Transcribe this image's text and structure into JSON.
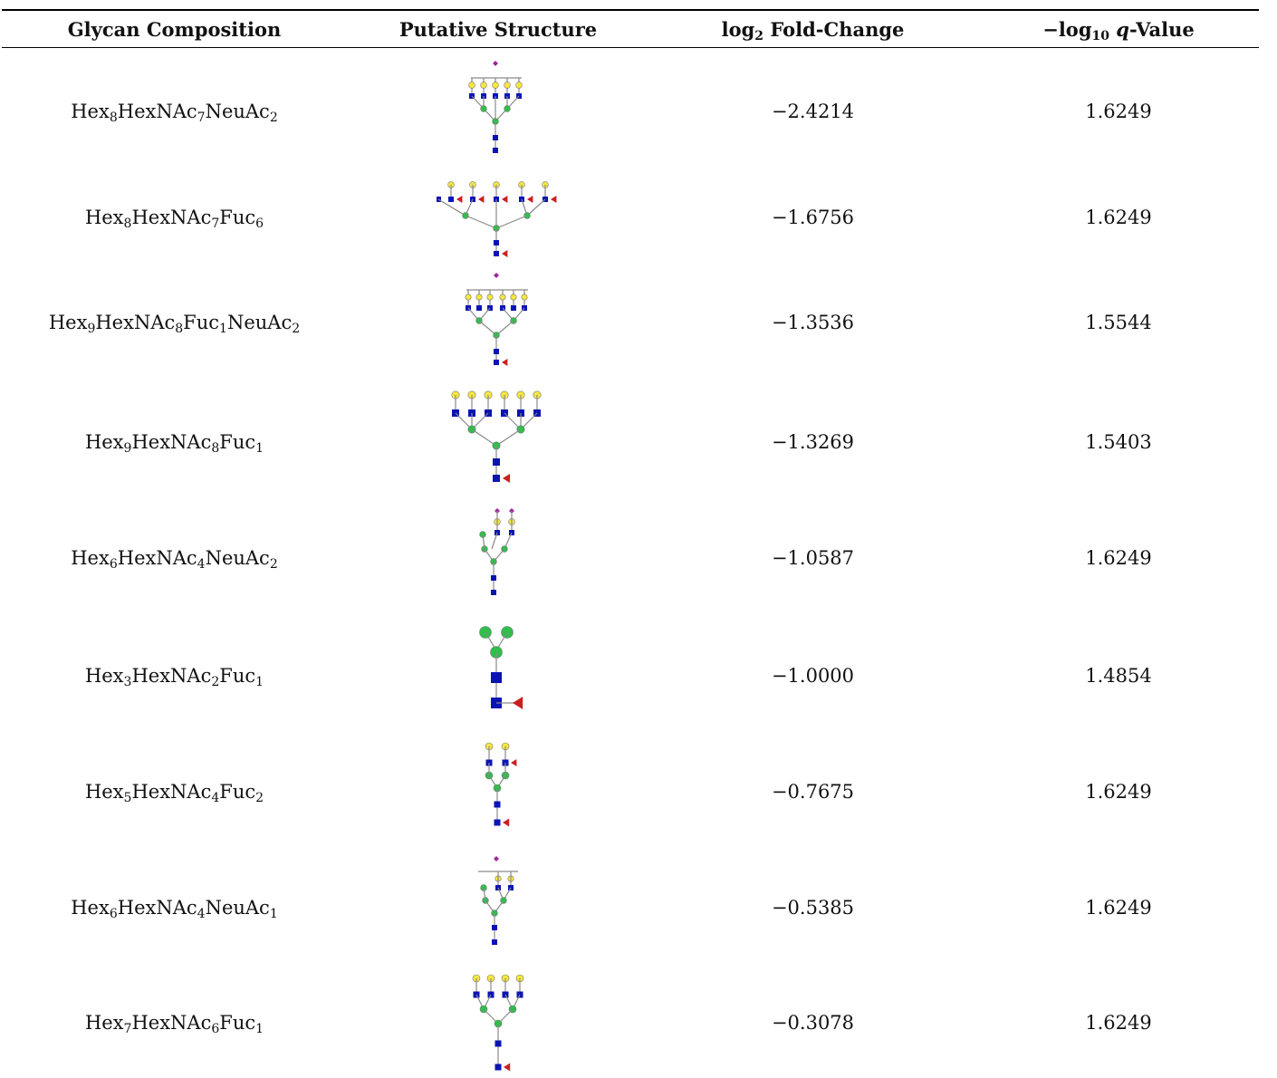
{
  "table": {
    "headers": {
      "composition": "Glycan Composition",
      "structure": "Putative Structure",
      "fold_change": {
        "pre": "log",
        "sub": "2",
        "post": " Fold-Change"
      },
      "q_value": {
        "pre": "−log",
        "sub": "10",
        "ital": "q",
        "post": "-Value"
      }
    },
    "rows": [
      {
        "composition": [
          [
            "Hex",
            "8"
          ],
          [
            "HexNAc",
            "7"
          ],
          [
            "NeuAc",
            "2"
          ]
        ],
        "structure": "glycan-tetraantennary-sialylated-icon",
        "fold_change": "−2.4214",
        "q_value": "1.6249"
      },
      {
        "composition": [
          [
            "Hex",
            "8"
          ],
          [
            "HexNAc",
            "7"
          ],
          [
            "Fuc",
            "6"
          ]
        ],
        "structure": "glycan-pentaantennary-fucosylated-icon",
        "fold_change": "−1.6756",
        "q_value": "1.6249"
      },
      {
        "composition": [
          [
            "Hex",
            "9"
          ],
          [
            "HexNAc",
            "8"
          ],
          [
            "Fuc",
            "1"
          ],
          [
            "NeuAc",
            "2"
          ]
        ],
        "structure": "glycan-hexaantennary-sialylated-fucosylated-icon",
        "fold_change": "−1.3536",
        "q_value": "1.5544"
      },
      {
        "composition": [
          [
            "Hex",
            "9"
          ],
          [
            "HexNAc",
            "8"
          ],
          [
            "Fuc",
            "1"
          ]
        ],
        "structure": "glycan-hexaantennary-core-fucosylated-icon",
        "fold_change": "−1.3269",
        "q_value": "1.5403"
      },
      {
        "composition": [
          [
            "Hex",
            "6"
          ],
          [
            "HexNAc",
            "4"
          ],
          [
            "NeuAc",
            "2"
          ]
        ],
        "structure": "glycan-hybrid-disialylated-icon",
        "fold_change": "−1.0587",
        "q_value": "1.6249"
      },
      {
        "composition": [
          [
            "Hex",
            "3"
          ],
          [
            "HexNAc",
            "2"
          ],
          [
            "Fuc",
            "1"
          ]
        ],
        "structure": "glycan-core-fucosylated-icon",
        "fold_change": "−1.0000",
        "q_value": "1.4854"
      },
      {
        "composition": [
          [
            "Hex",
            "5"
          ],
          [
            "HexNAc",
            "4"
          ],
          [
            "Fuc",
            "2"
          ]
        ],
        "structure": "glycan-biantennary-difucosylated-icon",
        "fold_change": "−0.7675",
        "q_value": "1.6249"
      },
      {
        "composition": [
          [
            "Hex",
            "6"
          ],
          [
            "HexNAc",
            "4"
          ],
          [
            "NeuAc",
            "1"
          ]
        ],
        "structure": "glycan-hybrid-monosialylated-icon",
        "fold_change": "−0.5385",
        "q_value": "1.6249"
      },
      {
        "composition": [
          [
            "Hex",
            "7"
          ],
          [
            "HexNAc",
            "6"
          ],
          [
            "Fuc",
            "1"
          ]
        ],
        "structure": "glycan-tetraantennary-core-fucosylated-icon",
        "fold_change": "−0.3078",
        "q_value": "1.6249"
      }
    ]
  },
  "colors": {
    "galactose": "#f5e640",
    "glcnac": "#0a14b4",
    "mannose": "#2fbf4a",
    "fucose": "#cc1f1f",
    "neuac": "#9b2a9b",
    "link": "#8a8a8a",
    "rule": "#000000"
  }
}
